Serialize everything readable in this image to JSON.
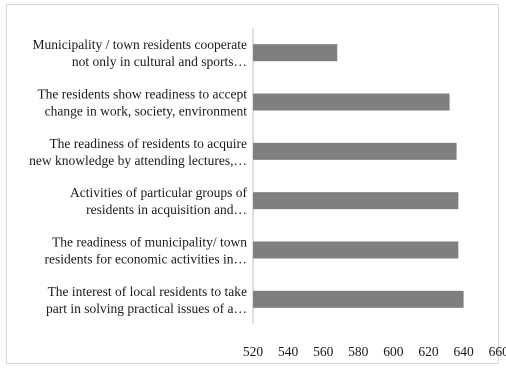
{
  "chart_data": {
    "type": "bar",
    "orientation": "horizontal",
    "categories": [
      [
        "Municipality / town residents cooperate",
        "not only in cultural and sports…"
      ],
      [
        "The residents show readiness to accept",
        "change in work, society, environment"
      ],
      [
        "The readiness of residents to acquire",
        "new knowledge by attending lectures,…"
      ],
      [
        "Activities of particular groups of",
        "residents in acquisition and…"
      ],
      [
        "The readiness of municipality/ town",
        "residents for economic activities in…"
      ],
      [
        "The interest of local residents to take",
        "part in solving practical issues of a…"
      ]
    ],
    "values": [
      568,
      632,
      636,
      637,
      637,
      640
    ],
    "xlim": [
      520,
      660
    ],
    "xticks": [
      "520",
      "540",
      "560",
      "580",
      "600",
      "620",
      "640",
      "660"
    ],
    "grid": false,
    "bar_color": "#7f7f7f",
    "axis_color": "#bfbfbf",
    "title": "",
    "xlabel": "",
    "ylabel": ""
  }
}
